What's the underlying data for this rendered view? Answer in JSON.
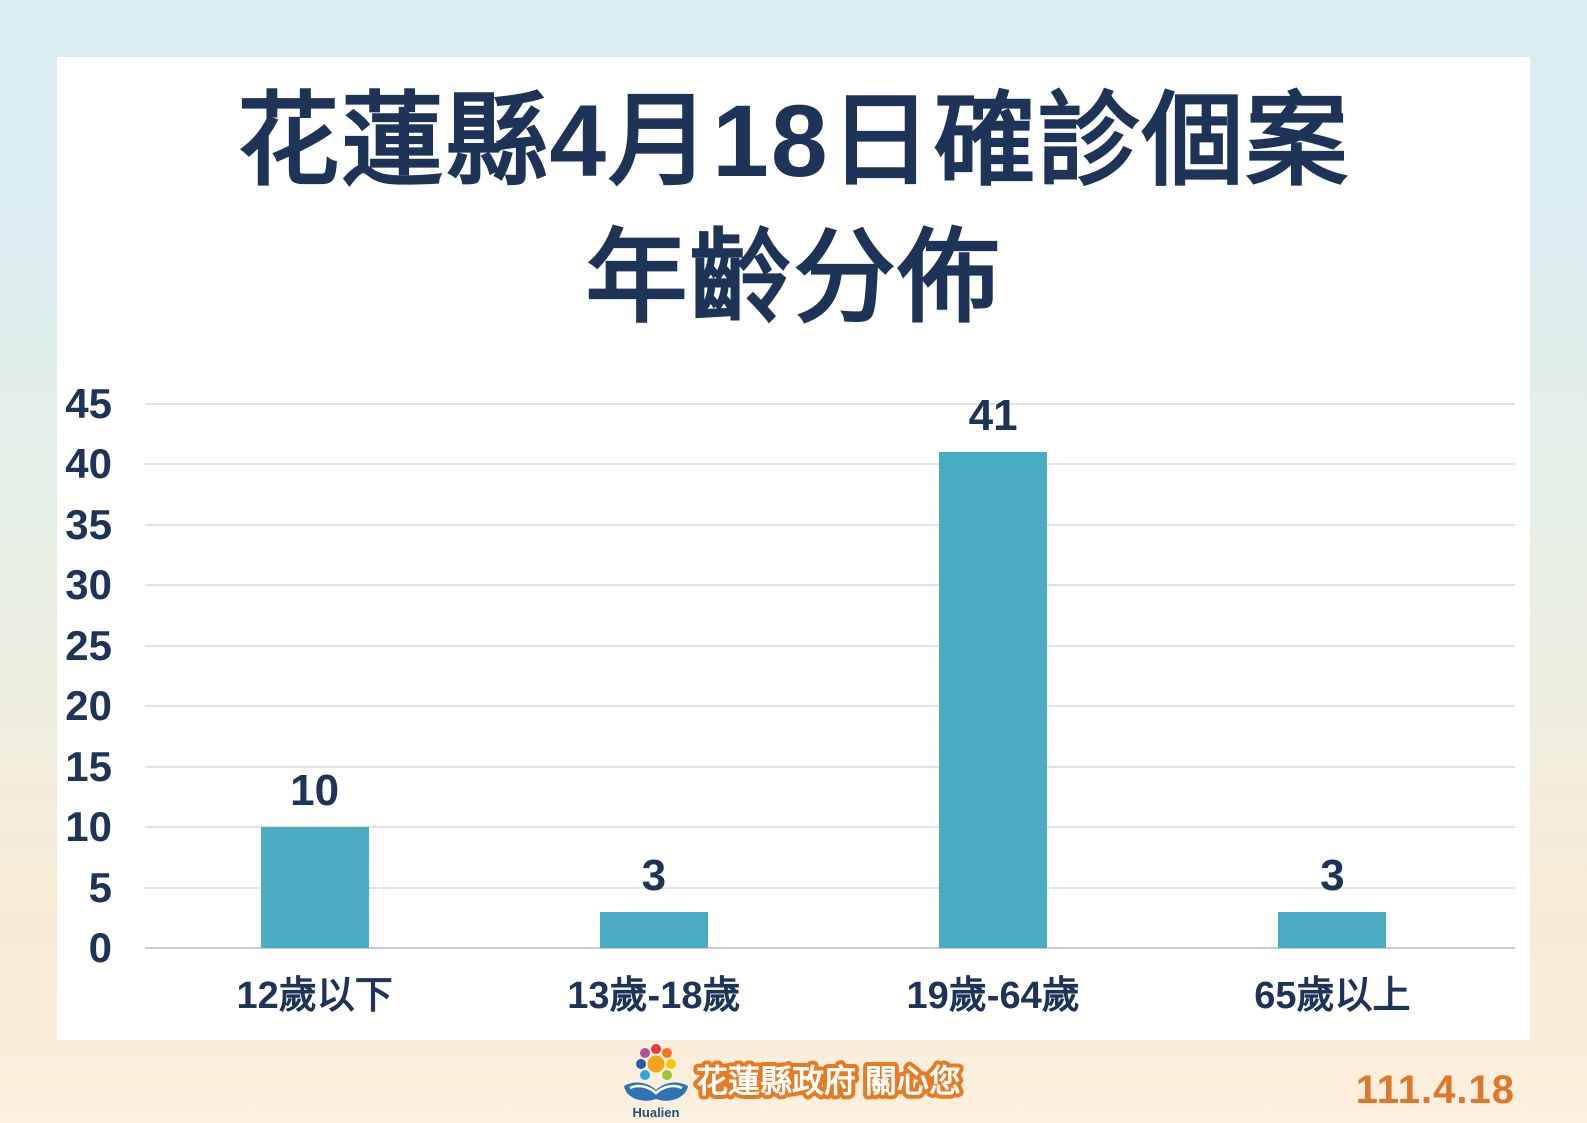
{
  "title": {
    "line1": "花蓮縣4月18日確診個案",
    "line2": "年齡分佈"
  },
  "chart_data": {
    "type": "bar",
    "title": "花蓮縣4月18日確診個案 年齡分佈",
    "categories": [
      "12歲以下",
      "13歲-18歲",
      "19歲-64歲",
      "65歲以上"
    ],
    "values": [
      10,
      3,
      41,
      3
    ],
    "xlabel": "",
    "ylabel": "",
    "ylim": [
      0,
      45
    ],
    "yticks": [
      0,
      5,
      10,
      15,
      20,
      25,
      30,
      35,
      40,
      45
    ],
    "grid": true,
    "legend_position": "none",
    "bar_color": "#4aacc2",
    "label_color": "#1d3357"
  },
  "footer": {
    "org_text": "花蓮縣政府 關心您",
    "logo_label": "Hualien",
    "date": "111.4.18"
  },
  "colors": {
    "navy": "#1d3357",
    "bar_teal": "#4aacc2",
    "orange": "#e0762a",
    "card_bg": "#ffffff",
    "bg_top": "#d9eef3",
    "bg_bottom": "#fcf0de",
    "gridline": "#e0e2e4"
  }
}
